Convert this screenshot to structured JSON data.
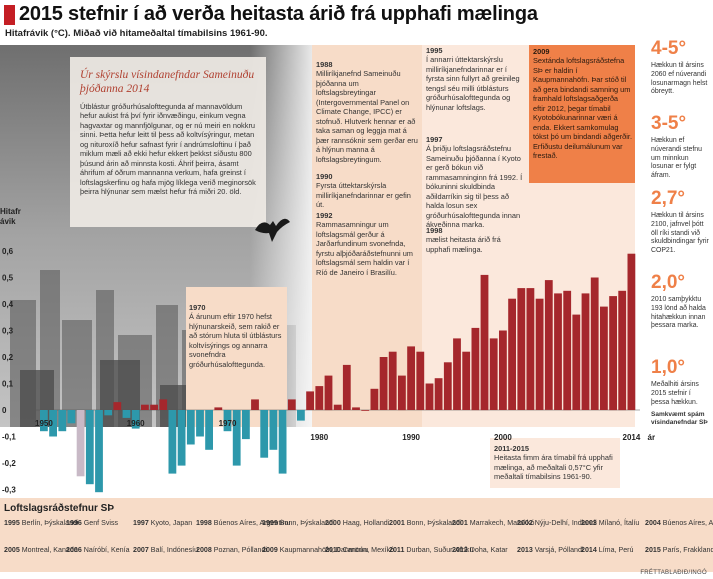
{
  "headline": "2015 stefnir í að verða heitasta árið frá upphafi mælinga",
  "subtitle": "Hitafrávik (°C). Miðað við hitameðaltal tímabilsins 1961-90.",
  "credit": "FRÉTTABLAÐIÐ/INGÓ",
  "inset": {
    "title": "Úr skýrslu vísindanefndar Sameinuðu þjóðanna 2014",
    "text": "Útblástur gróðurhúsalofttegunda af mannavöldum hefur aukist frá því fyrir iðnvæðingu, einkum vegna hagvaxtar og mannfjölgunar, og er nú meiri en nokkru sinni. Þetta hefur leitt til þess að koltvísýringur, metan og nituroxíð hefur safnast fyrir í andrúmsloftinu í það miklum mæli að ekki hefur ekkert þekkst síðustu 800 þúsund árin að minnsta kosti. Áhrif þeirra, ásamt áhrifum af öðrum mannanna verkum, hafa greinst í loftslagskerfinu og hafa mjög líklega verið meginorsök þeirra hlýnunar sem mælst hefur frá miðri 20. öld."
  },
  "timeline": [
    {
      "title": "1970",
      "text": "Á árunum eftir 1970 hefst hlýnunarskeið, sem rakið er að stórum hluta til útblásturs koltvísýrings og annarra svonefndra gróðurhúsalofttegunda."
    },
    {
      "title": "1988",
      "text": "Milliríkjanefnd Sameinuðu þjóðanna um loftslagsbreytingar (Intergovernmental Panel on Climate Change, IPCC) er stofnuð. Hlutverk hennar er að taka saman og leggja mat á þær rannsóknir sem gerðar eru á hlýnun manna á loftslagsbreytingum."
    },
    {
      "title": "1990",
      "text": "Fyrsta úttektarskýrsla milliríkjanefndarinnar er gefin út."
    },
    {
      "title": "1992",
      "text": "Rammasamningur um loftslagsmál gerður á Jarðarfundinum svonefnda, fyrstu alþjóðaráðstefnunni um loftslagsmál sem haldin var í Ríó de Janeiro í Brasilíu."
    },
    {
      "title": "1995",
      "text": "Í annarri úttektarskýrslu milliríkjanefndarinnar er í fyrsta sinn fullyrt að greinileg tengsl séu milli útblásturs gróðurhúsalofttegunda og hlýnunar loftslags."
    },
    {
      "title": "1997",
      "text": "Á þriðju loftslagsráðstefnu Sameinuðu þjóðanna í Kyoto er gerð bókun við rammasamninginn frá 1992. Í bókuninni skuldbinda aðildarríkin sig til þess að halda losun sex gróðurhúsalofttegunda innan ákveðinna marka."
    },
    {
      "title": "1998",
      "text": "mælist heitasta árið frá upphafi mælinga."
    },
    {
      "title": "2009",
      "text": "Sextánda loftslagsráðstefna SÞ er haldin í Kaupmannahöfn. Þar stóð til að gera bindandi samning um framhald loftslagsaðgerða eftir 2012, þegar tímabil Kyotobókunarinnar væri á enda. Ekkert samkomulag tókst þó um bindandi aðgerðir. Erfiðustu deilumálunum var frestað."
    },
    {
      "title": "2011-2015",
      "text": "Heitasta fimm ára tímabil frá upphafi mælinga, að meðaltali 0,57°C yfir meðaltali tímabilsins 1961-90."
    }
  ],
  "right_panel": {
    "items": [
      {
        "value": "4-5°",
        "text": "Hækkun til ársins 2060 ef núverandi losunarmagn helst óbreytt."
      },
      {
        "value": "3-5°",
        "text": "Hækkun ef núverandi stefnu um minnkun losunar er fylgt áfram."
      },
      {
        "value": "2,7°",
        "text": "Hækkun til ársins 2100, jafnvel þótt öll ríki standi við skuldbindingar fyrir COP21."
      },
      {
        "value": "2,0°",
        "text": "2010 samþykktu 193 lönd að halda hitahækkun innan þessara marka."
      },
      {
        "value": "1,0°",
        "text": "Meðalhiti ársins 2015 stefnir í þessa hækkun."
      }
    ],
    "footer": "Samkvæmt spám vísindanefndar SÞ"
  },
  "conferences_title": "Loftslagsráðstefnur SÞ",
  "conferences": [
    [
      "1995",
      "Berlín, Þýskalandi"
    ],
    [
      "2005",
      "Montreal, Kanada"
    ],
    [
      "1996",
      "Genf Sviss"
    ],
    [
      "2006",
      "Naíróbí, Kenía"
    ],
    [
      "1997",
      "Kyoto, Japan"
    ],
    [
      "2007",
      "Balí, Indónesíu"
    ],
    [
      "1998",
      "Búenos Aíres, Argentínu"
    ],
    [
      "2008",
      "Poznan, Póllandi"
    ],
    [
      "1999",
      "Bonn, Þýskalandi"
    ],
    [
      "2009",
      "Kaupmannahöfn, Danmörku"
    ],
    [
      "2000",
      "Haag, Hollandi"
    ],
    [
      "2010",
      "Cancun, Mexíkó"
    ],
    [
      "2001",
      "Bonn, Þýskalandi"
    ],
    [
      "2011",
      "Durban, Suður-Afríku"
    ],
    [
      "2001",
      "Marrakech, Marokkó"
    ],
    [
      "2012",
      "Doha, Katar"
    ],
    [
      "2002",
      "Nýju-Delhí, Indlandi"
    ],
    [
      "2013",
      "Varsjá, Póllandi"
    ],
    [
      "2003",
      "Mílanó, Ítalíu"
    ],
    [
      "2014",
      "Líma, Perú"
    ],
    [
      "2004",
      "Búenos Aíres, Argentínu"
    ],
    [
      "2015",
      "París, Frakklandi"
    ]
  ],
  "chart_data": {
    "type": "bar",
    "title": "2015 stefnir í að verða heitasta árið frá upphafi mælinga",
    "subtitle": "Hitafrávik (°C). Miðað við hitameðaltal tímabilsins 1961-90.",
    "ylabel": "Hitafrávik",
    "xlabel_unit": "ár",
    "ylim": [
      -0.35,
      0.65
    ],
    "yticks": [
      "0,6",
      "0,5",
      "0,4",
      "0,3",
      "0,2",
      "0,1",
      "0",
      "-0,1",
      "-0,2",
      "-0,3"
    ],
    "xticks": [
      "1950",
      "1960",
      "1970",
      "1980",
      "1990",
      "2000",
      "2014"
    ],
    "x": [
      1950,
      1951,
      1952,
      1953,
      1954,
      1955,
      1956,
      1957,
      1958,
      1959,
      1960,
      1961,
      1962,
      1963,
      1964,
      1965,
      1966,
      1967,
      1968,
      1969,
      1970,
      1971,
      1972,
      1973,
      1974,
      1975,
      1976,
      1977,
      1978,
      1979,
      1980,
      1981,
      1982,
      1983,
      1984,
      1985,
      1986,
      1987,
      1988,
      1989,
      1990,
      1991,
      1992,
      1993,
      1994,
      1995,
      1996,
      1997,
      1998,
      1999,
      2000,
      2001,
      2002,
      2003,
      2004,
      2005,
      2006,
      2007,
      2008,
      2009,
      2010,
      2011,
      2012,
      2013,
      2014
    ],
    "values": [
      -0.08,
      -0.1,
      -0.08,
      -0.05,
      -0.25,
      -0.28,
      -0.31,
      -0.02,
      0.03,
      -0.03,
      -0.07,
      0.02,
      0.02,
      0.04,
      -0.24,
      -0.21,
      -0.13,
      -0.1,
      -0.15,
      0.01,
      -0.08,
      -0.21,
      -0.11,
      0.04,
      -0.18,
      -0.15,
      -0.24,
      0.04,
      -0.04,
      0.07,
      0.09,
      0.13,
      0.02,
      0.17,
      0.01,
      0.0,
      0.08,
      0.2,
      0.22,
      0.13,
      0.24,
      0.22,
      0.1,
      0.12,
      0.18,
      0.27,
      0.22,
      0.31,
      0.51,
      0.27,
      0.3,
      0.42,
      0.46,
      0.46,
      0.42,
      0.49,
      0.44,
      0.45,
      0.36,
      0.44,
      0.5,
      0.39,
      0.43,
      0.45,
      0.59
    ],
    "colors": {
      "negative": "#2d98ab",
      "positive": "#a5272c",
      "highlight": "#c8b9c6"
    }
  }
}
